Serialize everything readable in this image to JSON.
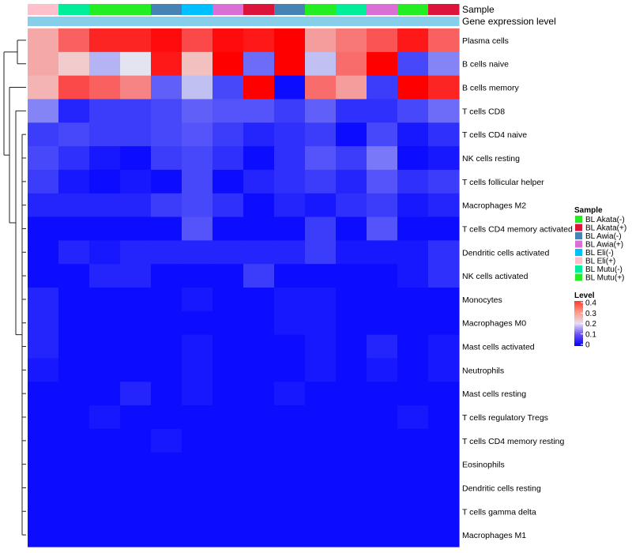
{
  "chart_data": {
    "type": "heatmap",
    "title": "",
    "annotation_tracks": [
      "Sample",
      "Gene expression level"
    ],
    "columns": [
      "BL Eli(+)",
      "BL Mutu(-)",
      "BL Mutu(+)",
      "BL Mutu(+)",
      "BL Awia(-)",
      "BL Eli(-)",
      "BL Awia(+)",
      "BL Akata(+)",
      "BL Awia(-)",
      "BL Mutu(+)",
      "BL Mutu(-)",
      "BL Awia(+)",
      "BL Mutu(+)",
      "BL Akata(+)"
    ],
    "rows": [
      "Plasma cells",
      "B cells naive",
      "B cells memory",
      "T cells CD8",
      "T cells CD4 naive",
      "NK cells resting",
      "T cells follicular helper",
      "Macrophages M2",
      "T cells CD4 memory activated",
      "Dendritic cells activated",
      "NK cells activated",
      "Monocytes",
      "Macrophages M0",
      "Mast cells activated",
      "Neutrophils",
      "Mast cells resting",
      "T cells regulatory  Tregs",
      "T cells CD4 memory resting",
      "Eosinophils",
      "Dendritic cells resting",
      "T cells gamma delta",
      "Macrophages M1"
    ],
    "values": [
      [
        0.26,
        0.32,
        0.37,
        0.37,
        0.39,
        0.34,
        0.39,
        0.38,
        0.4,
        0.27,
        0.3,
        0.33,
        0.38,
        0.32
      ],
      [
        0.26,
        0.23,
        0.15,
        0.19,
        0.38,
        0.24,
        0.42,
        0.09,
        0.43,
        0.16,
        0.31,
        0.42,
        0.06,
        0.11
      ],
      [
        0.25,
        0.34,
        0.32,
        0.29,
        0.08,
        0.16,
        0.06,
        0.41,
        0.01,
        0.31,
        0.27,
        0.05,
        0.42,
        0.37
      ],
      [
        0.11,
        0.03,
        0.05,
        0.05,
        0.06,
        0.08,
        0.07,
        0.07,
        0.05,
        0.08,
        0.04,
        0.04,
        0.06,
        0.09
      ],
      [
        0.05,
        0.06,
        0.05,
        0.05,
        0.06,
        0.07,
        0.05,
        0.03,
        0.04,
        0.05,
        0.01,
        0.06,
        0.02,
        0.04
      ],
      [
        0.06,
        0.04,
        0.02,
        0.01,
        0.05,
        0.06,
        0.04,
        0.01,
        0.04,
        0.07,
        0.05,
        0.1,
        0.01,
        0.02
      ],
      [
        0.05,
        0.02,
        0.01,
        0.02,
        0.01,
        0.06,
        0.01,
        0.03,
        0.04,
        0.05,
        0.03,
        0.07,
        0.04,
        0.05
      ],
      [
        0.03,
        0.03,
        0.03,
        0.03,
        0.05,
        0.06,
        0.04,
        0.01,
        0.03,
        0.02,
        0.04,
        0.05,
        0.02,
        0.03
      ],
      [
        0.01,
        0.01,
        0.01,
        0.01,
        0.01,
        0.07,
        0.01,
        0.01,
        0.01,
        0.05,
        0.01,
        0.07,
        0.01,
        0.01
      ],
      [
        0.01,
        0.03,
        0.02,
        0.03,
        0.03,
        0.03,
        0.03,
        0.03,
        0.03,
        0.05,
        0.02,
        0.02,
        0.02,
        0.04
      ],
      [
        0.01,
        0.01,
        0.03,
        0.03,
        0.01,
        0.01,
        0.01,
        0.05,
        0.01,
        0.01,
        0.01,
        0.01,
        0.02,
        0.04
      ],
      [
        0.03,
        0.01,
        0.01,
        0.01,
        0.01,
        0.02,
        0.01,
        0.01,
        0.02,
        0.02,
        0.01,
        0.01,
        0.01,
        0.01
      ],
      [
        0.03,
        0.01,
        0.01,
        0.01,
        0.01,
        0.01,
        0.01,
        0.01,
        0.02,
        0.02,
        0.01,
        0.01,
        0.01,
        0.01
      ],
      [
        0.03,
        0.01,
        0.01,
        0.01,
        0.01,
        0.02,
        0.01,
        0.01,
        0.01,
        0.02,
        0.01,
        0.03,
        0.01,
        0.02
      ],
      [
        0.02,
        0.01,
        0.01,
        0.01,
        0.01,
        0.02,
        0.01,
        0.01,
        0.01,
        0.02,
        0.01,
        0.02,
        0.01,
        0.02
      ],
      [
        0.01,
        0.01,
        0.01,
        0.03,
        0.01,
        0.02,
        0.01,
        0.01,
        0.02,
        0.01,
        0.01,
        0.01,
        0.01,
        0.01
      ],
      [
        0.01,
        0.01,
        0.02,
        0.01,
        0.01,
        0.01,
        0.01,
        0.01,
        0.01,
        0.01,
        0.01,
        0.01,
        0.02,
        0.01
      ],
      [
        0.01,
        0.01,
        0.01,
        0.01,
        0.02,
        0.01,
        0.01,
        0.01,
        0.01,
        0.01,
        0.01,
        0.01,
        0.01,
        0.01
      ],
      [
        0.01,
        0.01,
        0.01,
        0.01,
        0.01,
        0.01,
        0.01,
        0.01,
        0.01,
        0.01,
        0.01,
        0.01,
        0.01,
        0.01
      ],
      [
        0.01,
        0.01,
        0.01,
        0.01,
        0.01,
        0.01,
        0.01,
        0.01,
        0.01,
        0.01,
        0.01,
        0.01,
        0.01,
        0.01
      ],
      [
        0.01,
        0.01,
        0.01,
        0.01,
        0.01,
        0.01,
        0.01,
        0.01,
        0.01,
        0.01,
        0.01,
        0.01,
        0.01,
        0.01
      ],
      [
        0.01,
        0.01,
        0.01,
        0.01,
        0.01,
        0.01,
        0.01,
        0.01,
        0.01,
        0.01,
        0.01,
        0.01,
        0.01,
        0.01
      ]
    ],
    "value_range": [
      0,
      0.4
    ],
    "legend": {
      "sample_title": "Sample",
      "samples": [
        {
          "name": "BL Akata(-)",
          "color": "#22ee22"
        },
        {
          "name": "BL Akata(+)",
          "color": "#dc143c"
        },
        {
          "name": "BL Awia(-)",
          "color": "#4682b4"
        },
        {
          "name": "BL Awia(+)",
          "color": "#da70d6"
        },
        {
          "name": "BL Eli(-)",
          "color": "#00bfff"
        },
        {
          "name": "BL Eli(+)",
          "color": "#ffc0cb"
        },
        {
          "name": "BL Mutu(-)",
          "color": "#00ee99"
        },
        {
          "name": "BL Mutu(+)",
          "color": "#22ee22"
        }
      ],
      "level_title": "Level",
      "level_ticks": [
        "0.4",
        "0.3",
        "0.2",
        "0.1",
        "0"
      ]
    },
    "colors": {
      "low": "#0000ff",
      "mid": "#f0f0f0",
      "high": "#ff0000",
      "gene_track": "#87ceeb"
    }
  }
}
